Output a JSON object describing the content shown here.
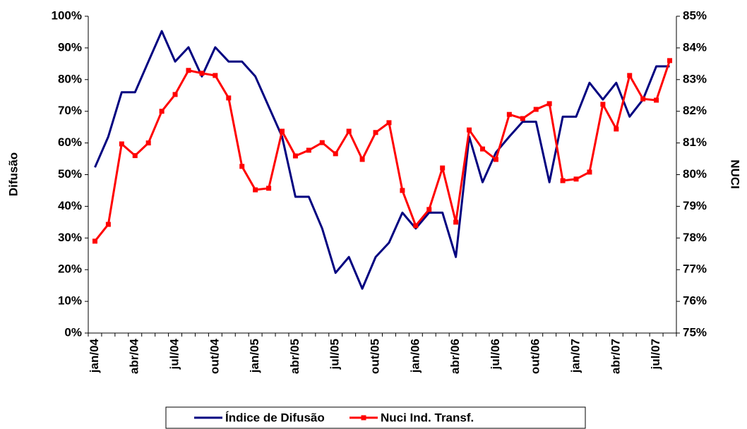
{
  "chart_data": {
    "type": "line",
    "categories": [
      "jan/04",
      null,
      null,
      "abr/04",
      null,
      null,
      "jul/04",
      null,
      null,
      "out/04",
      null,
      null,
      "jan/05",
      null,
      null,
      "abr/05",
      null,
      null,
      "jul/05",
      null,
      null,
      "out/05",
      null,
      null,
      "jan/06",
      null,
      null,
      "abr/06",
      null,
      null,
      "jul/06",
      null,
      null,
      "out/06",
      null,
      null,
      "jan/07",
      null,
      null,
      "abr/07",
      null,
      null,
      "jul/07",
      null
    ],
    "y_label": "Difusão",
    "y2_label": "NUCI",
    "ylim": [
      0,
      100
    ],
    "yticks": [
      {
        "value": 0,
        "label": "0%"
      },
      {
        "value": 10,
        "label": "10%"
      },
      {
        "value": 20,
        "label": "20%"
      },
      {
        "value": 30,
        "label": "30%"
      },
      {
        "value": 40,
        "label": "40%"
      },
      {
        "value": 50,
        "label": "50%"
      },
      {
        "value": 60,
        "label": "60%"
      },
      {
        "value": 70,
        "label": "70%"
      },
      {
        "value": 80,
        "label": "80%"
      },
      {
        "value": 90,
        "label": "90%"
      },
      {
        "value": 100,
        "label": "100%"
      }
    ],
    "y2lim": [
      75,
      85
    ],
    "y2ticks": [
      {
        "value": 75,
        "label": "75%"
      },
      {
        "value": 76,
        "label": "76%"
      },
      {
        "value": 77,
        "label": "77%"
      },
      {
        "value": 78,
        "label": "78%"
      },
      {
        "value": 79,
        "label": "79%"
      },
      {
        "value": 80,
        "label": "80%"
      },
      {
        "value": 81,
        "label": "81%"
      },
      {
        "value": 82,
        "label": "82%"
      },
      {
        "value": 83,
        "label": "83%"
      },
      {
        "value": 84,
        "label": "84%"
      },
      {
        "value": 85,
        "label": "85%"
      }
    ],
    "grid": false,
    "legend": "bottom",
    "series": [
      {
        "name": "Índice de Difusão",
        "color": "#000080",
        "marker": false,
        "values": [
          52.3,
          62,
          76,
          76,
          85.7,
          95.3,
          85.7,
          90.2,
          81,
          90.2,
          85.7,
          85.7,
          81,
          71.5,
          62,
          43,
          43,
          33,
          19,
          24,
          14,
          24,
          28.5,
          38,
          33,
          38,
          38,
          24,
          62,
          47.6,
          57,
          62,
          66.7,
          66.7,
          47.6,
          68.3,
          68.3,
          79,
          73.7,
          79,
          68.3,
          73.7,
          84.2,
          84.2
        ]
      },
      {
        "name": "Nuci Ind. Transf.",
        "color": "#ff0000",
        "marker": true,
        "axis": "y2",
        "values": [
          77.9,
          78.43,
          80.97,
          80.6,
          81.0,
          82.0,
          82.53,
          83.29,
          83.2,
          83.13,
          82.42,
          80.26,
          79.52,
          79.57,
          81.37,
          80.59,
          80.77,
          81.01,
          80.66,
          81.37,
          80.48,
          81.33,
          81.64,
          79.5,
          78.39,
          78.9,
          80.21,
          78.5,
          81.41,
          80.81,
          80.48,
          81.9,
          81.77,
          82.06,
          82.24,
          79.81,
          79.86,
          80.08,
          82.22,
          81.44,
          83.13,
          82.39,
          82.35,
          83.6
        ]
      }
    ]
  }
}
